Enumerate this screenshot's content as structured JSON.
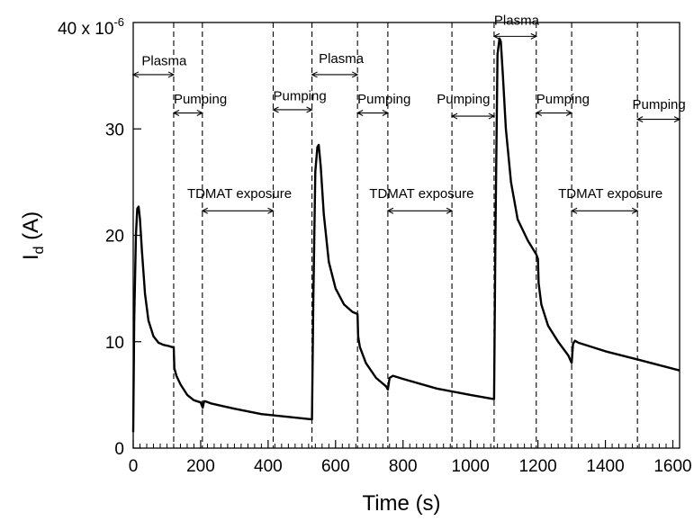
{
  "chart_data": {
    "type": "line",
    "title": "",
    "xlabel": "Time (s)",
    "ylabel_main": "I",
    "ylabel_sub": "d",
    "ylabel_unit": " (A)",
    "xlim": [
      0,
      1620
    ],
    "ylim": [
      0,
      40
    ],
    "x_ticks": [
      0,
      200,
      400,
      600,
      800,
      1000,
      1200,
      1400,
      1600
    ],
    "x_tick_labels": [
      "0",
      "200",
      "400",
      "600",
      "800",
      "1000",
      "1200",
      "1400",
      "1600"
    ],
    "y_ticks": [
      0,
      10,
      20,
      30
    ],
    "y_tick_labels": [
      "0",
      "10",
      "20",
      "30"
    ],
    "y_top_label_main": "40 x 10",
    "y_top_label_exp": "-6",
    "grid": false,
    "legend": "none",
    "series": [
      {
        "x": [
          0,
          3,
          8,
          12,
          16,
          20,
          26,
          35,
          45,
          60,
          75,
          90,
          105,
          115,
          120,
          122,
          128,
          140,
          160,
          180,
          200,
          206,
          210,
          214,
          230,
          300,
          380,
          470,
          530,
          534,
          540,
          546,
          550,
          556,
          565,
          580,
          600,
          625,
          650,
          665,
          667,
          672,
          690,
          720,
          750,
          755,
          760,
          770,
          800,
          900,
          1000,
          1070,
          1074,
          1080,
          1086,
          1090,
          1096,
          1105,
          1120,
          1140,
          1170,
          1195,
          1200,
          1202,
          1210,
          1230,
          1260,
          1290,
          1300,
          1304,
          1310,
          1320,
          1400,
          1500,
          1620
        ],
        "y": [
          1.5,
          12,
          20,
          22.5,
          22.7,
          21.5,
          18.5,
          14.5,
          12,
          10.5,
          9.9,
          9.7,
          9.6,
          9.5,
          9.5,
          7.5,
          6.8,
          6,
          5,
          4.5,
          4.3,
          3.8,
          4.4,
          4.4,
          4.2,
          3.7,
          3.2,
          2.9,
          2.7,
          14,
          26,
          28.3,
          28.5,
          26.5,
          22,
          17.5,
          15,
          13.5,
          12.8,
          12.6,
          10.5,
          9.5,
          8,
          6.6,
          5.8,
          5.5,
          6.6,
          6.8,
          6.5,
          5.6,
          5,
          4.6,
          20,
          37,
          38.5,
          38.2,
          35,
          30,
          25,
          21.5,
          19.5,
          18.2,
          17.8,
          15.5,
          13.5,
          11.5,
          10,
          8.7,
          8,
          9.8,
          10.1,
          9.9,
          9.1,
          8.3,
          7.3
        ]
      }
    ],
    "dashed_lines_x": [
      120,
      205,
      415,
      530,
      665,
      755,
      945,
      1070,
      1195,
      1300,
      1495
    ],
    "annotations": [
      {
        "label": "Plasma",
        "x1": 0,
        "x2": 120,
        "y": 35.1,
        "text_x": 25,
        "text_y": 36
      },
      {
        "label": "Pumping",
        "x1": 120,
        "x2": 205,
        "y": 31.5,
        "text_x": 120,
        "text_y": 32.4
      },
      {
        "label": "Pumping",
        "x1": 415,
        "x2": 530,
        "y": 31.8,
        "text_x": 415,
        "text_y": 32.7
      },
      {
        "label": "Plasma",
        "x1": 530,
        "x2": 665,
        "y": 35.1,
        "text_x": 550,
        "text_y": 36.2
      },
      {
        "label": "Pumping",
        "x1": 665,
        "x2": 755,
        "y": 31.5,
        "text_x": 665,
        "text_y": 32.4
      },
      {
        "label": "Pumping",
        "x1": 945,
        "x2": 1070,
        "y": 31.2,
        "text_x": 900,
        "text_y": 32.4
      },
      {
        "label": "Plasma",
        "x1": 1070,
        "x2": 1195,
        "y": 38.7,
        "text_x": 1070,
        "text_y": 39.8
      },
      {
        "label": "Pumping",
        "x1": 1195,
        "x2": 1300,
        "y": 31.5,
        "text_x": 1195,
        "text_y": 32.4
      },
      {
        "label": "Pumping",
        "x1": 1495,
        "x2": 1620,
        "y": 30.9,
        "text_x": 1480,
        "text_y": 31.9
      },
      {
        "label": "TDMAT exposure",
        "x1": 205,
        "x2": 415,
        "y": 22.3,
        "text_x": 160,
        "text_y": 23.5
      },
      {
        "label": "TDMAT exposure",
        "x1": 755,
        "x2": 945,
        "y": 22.3,
        "text_x": 700,
        "text_y": 23.5
      },
      {
        "label": "TDMAT exposure",
        "x1": 1300,
        "x2": 1495,
        "y": 22.3,
        "text_x": 1260,
        "text_y": 23.5
      }
    ]
  }
}
